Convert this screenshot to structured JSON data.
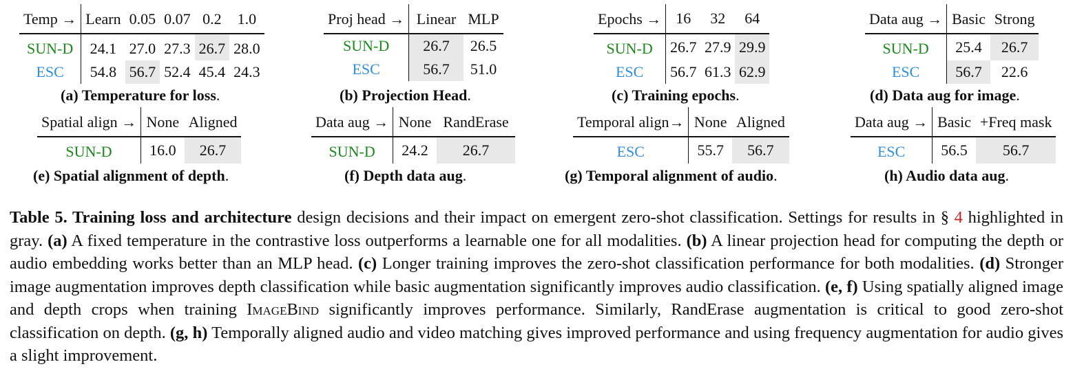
{
  "tables": {
    "a": {
      "header": [
        "Temp →",
        "Learn",
        "0.05",
        "0.07",
        "0.2",
        "1.0"
      ],
      "rows": [
        {
          "label": "SUN-D",
          "values": [
            "24.1",
            "27.0",
            "27.3",
            "26.7",
            "28.0"
          ]
        },
        {
          "label": "ESC",
          "values": [
            "54.8",
            "56.7",
            "52.4",
            "45.4",
            "24.3"
          ]
        }
      ],
      "caption_label": "(a) Temperature for loss",
      "caption_end": "."
    },
    "b": {
      "header": [
        "Proj head →",
        "Linear",
        "MLP"
      ],
      "rows": [
        {
          "label": "SUN-D",
          "values": [
            "26.7",
            "26.5"
          ]
        },
        {
          "label": "ESC",
          "values": [
            "56.7",
            "51.0"
          ]
        }
      ],
      "caption_label": "(b) Projection Head",
      "caption_end": "."
    },
    "c": {
      "header": [
        "Epochs →",
        "16",
        "32",
        "64"
      ],
      "rows": [
        {
          "label": "SUN-D",
          "values": [
            "26.7",
            "27.9",
            "29.9"
          ]
        },
        {
          "label": "ESC",
          "values": [
            "56.7",
            "61.3",
            "62.9"
          ]
        }
      ],
      "caption_label": "(c) Training epochs",
      "caption_end": "."
    },
    "d": {
      "header": [
        "Data aug →",
        "Basic",
        "Strong"
      ],
      "rows": [
        {
          "label": "SUN-D",
          "values": [
            "25.4",
            "26.7"
          ]
        },
        {
          "label": "ESC",
          "values": [
            "56.7",
            "22.6"
          ]
        }
      ],
      "caption_label": "(d) Data aug for image",
      "caption_end": "."
    },
    "e": {
      "header": [
        "Spatial align →",
        "None",
        "Aligned"
      ],
      "rows": [
        {
          "label": "SUN-D",
          "values": [
            "16.0",
            "26.7"
          ]
        }
      ],
      "caption_label": "(e) Spatial alignment of depth",
      "caption_end": "."
    },
    "f": {
      "header": [
        "Data aug →",
        "None",
        "RandErase"
      ],
      "rows": [
        {
          "label": "SUN-D",
          "values": [
            "24.2",
            "26.7"
          ]
        }
      ],
      "caption_label": "(f) Depth data aug",
      "caption_end": "."
    },
    "g": {
      "header": [
        "Temporal align→",
        "None",
        "Aligned"
      ],
      "rows": [
        {
          "label": "ESC",
          "values": [
            "55.7",
            "56.7"
          ]
        }
      ],
      "caption_label": "(g) Temporal alignment of audio",
      "caption_end": "."
    },
    "h": {
      "header": [
        "Data aug →",
        "Basic",
        "+Freq mask"
      ],
      "rows": [
        {
          "label": "ESC",
          "values": [
            "56.5",
            "56.7"
          ]
        }
      ],
      "caption_label": "(h) Audio data aug",
      "caption_end": "."
    }
  },
  "caption": {
    "title": "Table 5. Training loss and architecture",
    "s1": " design decisions and their impact on emergent zero-shot classification. Settings for results in § ",
    "ref": "4",
    "s2": " highlighted in gray. ",
    "a_label": "(a)",
    "a_text": " A fixed temperature in the contrastive loss outperforms a learnable one for all modalities. ",
    "b_label": "(b)",
    "b_text": " A linear projection head for computing the depth or audio embedding works better than an MLP head. ",
    "c_label": "(c)",
    "c_text": " Longer training improves the zero-shot classification performance for both modalities. ",
    "d_label": "(d)",
    "d_text": " Stronger image augmentation improves depth classification while basic augmentation significantly improves audio classification. ",
    "ef_label": "(e, f)",
    "ef_text1": " Using spatially aligned image and depth crops when training ",
    "model_name": "ImageBind",
    "ef_text2": " significantly improves performance. Similarly, RandErase augmentation is critical to good zero-shot classification on depth. ",
    "gh_label": "(g, h)",
    "gh_text": " Temporally aligned audio and video matching gives improved performance and using frequency augmentation for audio gives a slight improvement."
  },
  "colors": {
    "sun_d": "#1a8a1a",
    "esc": "#2c8fe6",
    "highlight": "#e8e8e8",
    "reference": "#d62020"
  }
}
